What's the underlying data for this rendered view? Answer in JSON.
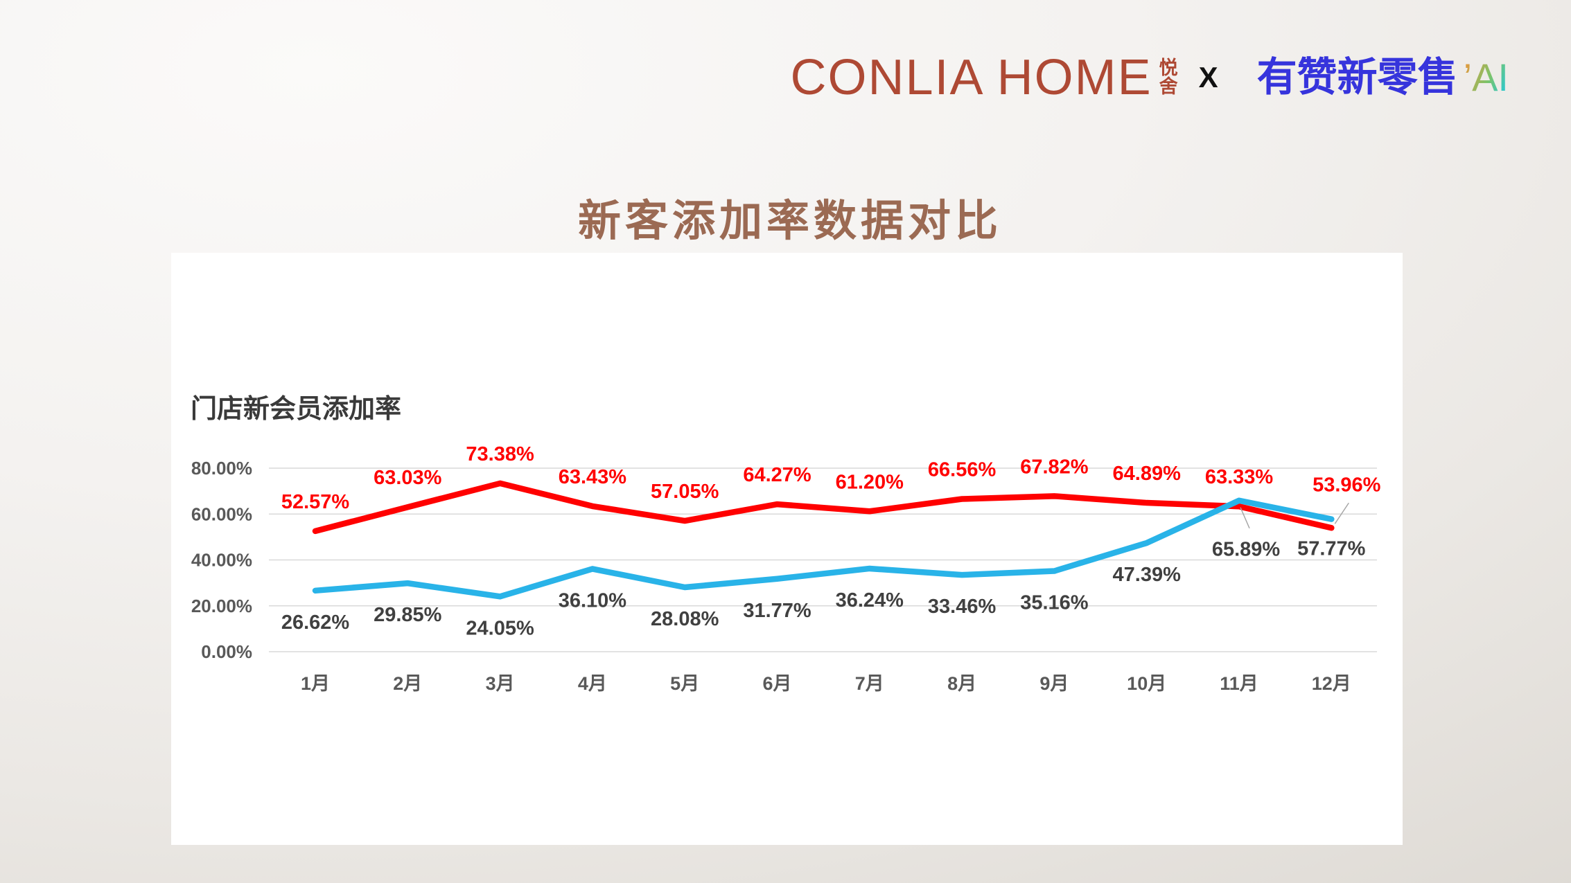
{
  "theme": {
    "card_bg": "#ffffff"
  },
  "logo": {
    "brand": "CONLIA HOME",
    "brand_color": "#AE4934",
    "brand_suffix_top": "悦",
    "brand_suffix_bottom": "舍",
    "separator": "X",
    "separator_color": "#111111",
    "partner": "有赞新零售",
    "partner_color": "#3634DC",
    "partner_suffix": "’AI",
    "ai_gradient_start": "#E8973C",
    "ai_gradient_mid": "#7CC46A",
    "ai_gradient_end": "#1FC9DC"
  },
  "title": {
    "text": "新客添加率数据对比",
    "color": "#9B6A53"
  },
  "chart_data": {
    "type": "line",
    "title": "门店新会员添加率",
    "title_color": "#3A3A3A",
    "categories": [
      "1月",
      "2月",
      "3月",
      "4月",
      "5月",
      "6月",
      "7月",
      "8月",
      "9月",
      "10月",
      "11月",
      "12月"
    ],
    "series": [
      {
        "id": "red",
        "color": "#FF0000",
        "label_color": "#FF0000",
        "values": [
          52.57,
          63.03,
          73.38,
          63.43,
          57.05,
          64.27,
          61.2,
          66.56,
          67.82,
          64.89,
          63.33,
          53.96
        ]
      },
      {
        "id": "blue",
        "color": "#29B3E8",
        "label_color": "#404040",
        "values": [
          26.62,
          29.85,
          24.05,
          36.1,
          28.08,
          31.77,
          36.24,
          33.46,
          35.16,
          47.39,
          65.89,
          57.77
        ]
      }
    ],
    "ylim": [
      0,
      80
    ],
    "ytick_labels": [
      "0.00%",
      "20.00%",
      "40.00%",
      "60.00%",
      "80.00%"
    ],
    "xlabel": "",
    "ylabel": "",
    "grid": true,
    "legend": "none",
    "label_format": "0.00%",
    "axis_label_color": "#595959",
    "grid_color": "#D9D9D9",
    "leader_line_color": "#A6A6A6"
  }
}
